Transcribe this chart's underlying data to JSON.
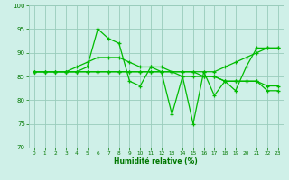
{
  "title": "",
  "xlabel": "Humidité relative (%)",
  "ylabel": "",
  "background_color": "#cff0e8",
  "grid_color": "#99ccbb",
  "line_color": "#00bb00",
  "text_color": "#007700",
  "xlim": [
    -0.5,
    23.5
  ],
  "ylim": [
    70,
    100
  ],
  "yticks": [
    70,
    75,
    80,
    85,
    90,
    95,
    100
  ],
  "xticks": [
    0,
    1,
    2,
    3,
    4,
    5,
    6,
    7,
    8,
    9,
    10,
    11,
    12,
    13,
    14,
    15,
    16,
    17,
    18,
    19,
    20,
    21,
    22,
    23
  ],
  "series": [
    [
      86,
      86,
      86,
      86,
      86,
      87,
      95,
      93,
      92,
      84,
      83,
      87,
      86,
      77,
      85,
      75,
      86,
      81,
      84,
      82,
      87,
      91,
      91,
      91
    ],
    [
      86,
      86,
      86,
      86,
      87,
      88,
      89,
      89,
      89,
      88,
      87,
      87,
      87,
      86,
      86,
      86,
      86,
      86,
      87,
      88,
      89,
      90,
      91,
      91
    ],
    [
      86,
      86,
      86,
      86,
      86,
      86,
      86,
      86,
      86,
      86,
      86,
      86,
      86,
      86,
      85,
      85,
      85,
      85,
      84,
      84,
      84,
      84,
      83,
      83
    ],
    [
      86,
      86,
      86,
      86,
      86,
      86,
      86,
      86,
      86,
      86,
      86,
      86,
      86,
      86,
      86,
      86,
      85,
      85,
      84,
      84,
      84,
      84,
      82,
      82
    ]
  ]
}
